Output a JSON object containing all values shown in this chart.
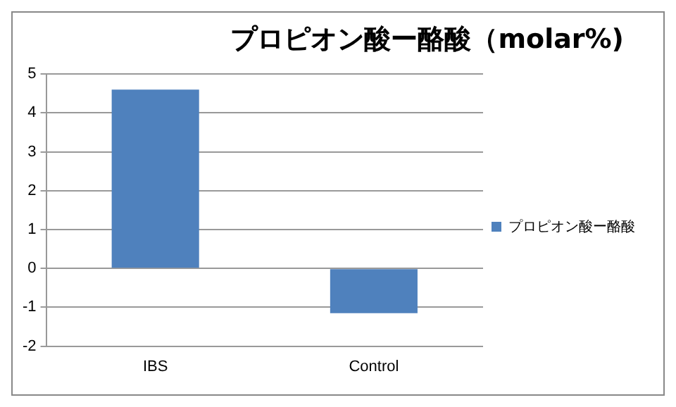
{
  "chart_data": {
    "type": "bar",
    "title": "プロピオン酸ー酪酸（molar%)",
    "categories": [
      "IBS",
      "Control"
    ],
    "series": [
      {
        "name": "プロピオン酸ー酪酸",
        "color": "#4f81bd",
        "values": [
          4.6,
          -1.15
        ]
      }
    ],
    "ylim": [
      -2,
      5
    ],
    "yticks": [
      -2,
      -1,
      0,
      1,
      2,
      3,
      4,
      5
    ],
    "grid": "y",
    "legend": "right"
  }
}
